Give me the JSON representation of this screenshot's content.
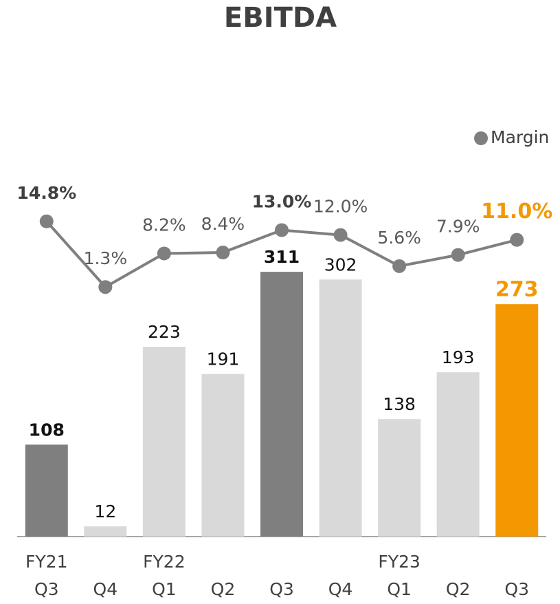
{
  "chart_data": {
    "type": "bar",
    "title": "EBITDA",
    "categories": [
      "Q3",
      "Q4",
      "Q1",
      "Q2",
      "Q3",
      "Q4",
      "Q1",
      "Q2",
      "Q3"
    ],
    "category_groups": [
      "FY21",
      null,
      "FY22",
      null,
      null,
      null,
      "FY23",
      null,
      null
    ],
    "values": [
      108,
      12,
      223,
      191,
      311,
      302,
      138,
      193,
      273
    ],
    "colors": [
      "#7f7f7f",
      "#d9d9d9",
      "#d9d9d9",
      "#d9d9d9",
      "#7f7f7f",
      "#d9d9d9",
      "#d9d9d9",
      "#d9d9d9",
      "#f39800"
    ],
    "label_colors": [
      "#111111",
      "#111111",
      "#111111",
      "#111111",
      "#111111",
      "#111111",
      "#111111",
      "#111111",
      "#f39800"
    ],
    "bold": [
      true,
      false,
      false,
      false,
      true,
      false,
      false,
      false,
      true
    ],
    "ylim": [
      0,
      400
    ],
    "y2lim": [
      -50,
      20
    ],
    "legend": "top-right",
    "series": [
      {
        "name": "Margin",
        "type": "line",
        "axis": "y2",
        "color": "#7f7f7f",
        "values": [
          14.8,
          1.3,
          8.2,
          8.4,
          13.0,
          12.0,
          5.6,
          7.9,
          11.0
        ],
        "value_labels": [
          "14.8%",
          "1.3%",
          "8.2%",
          "8.4%",
          "13.0%",
          "12.0%",
          "5.6%",
          "7.9%",
          "11.0%"
        ],
        "label_colors": [
          "#404040",
          "#595959",
          "#595959",
          "#595959",
          "#404040",
          "#595959",
          "#595959",
          "#595959",
          "#f39800"
        ],
        "bold": [
          true,
          false,
          false,
          false,
          true,
          false,
          false,
          false,
          true
        ]
      }
    ]
  }
}
